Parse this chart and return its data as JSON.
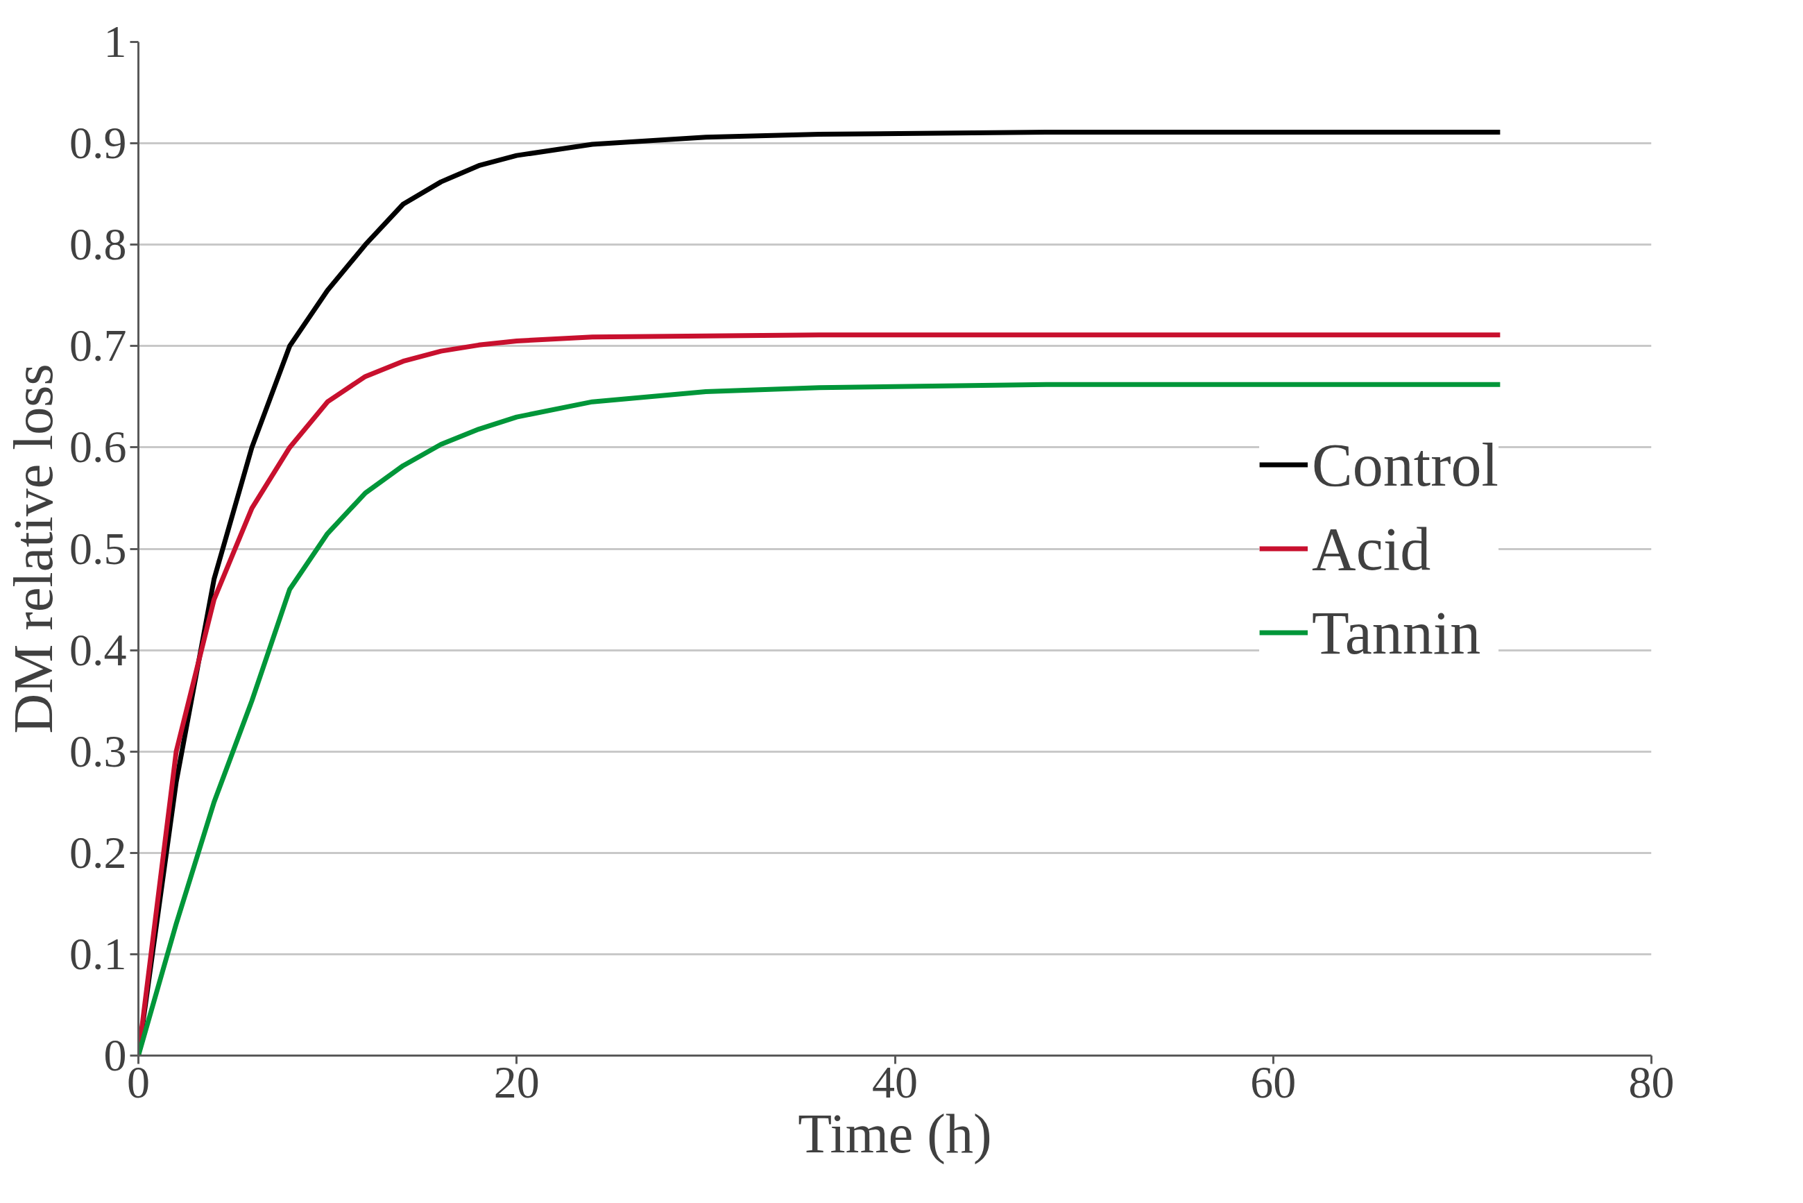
{
  "chart_data": {
    "type": "line",
    "xlabel": "Time (h)",
    "ylabel": "DM relative loss",
    "xlim": [
      0,
      80
    ],
    "xticks": [
      0,
      20,
      40,
      60,
      80
    ],
    "ylim": [
      0,
      1
    ],
    "yticks": [
      0,
      0.1,
      0.2,
      0.3,
      0.4,
      0.5,
      0.6,
      0.7,
      0.8,
      0.9,
      1
    ],
    "grid": "y",
    "legend": "right",
    "marker": "none",
    "line_style": "solid",
    "x": [
      0,
      2,
      4,
      6,
      8,
      10,
      12,
      14,
      16,
      18,
      20,
      24,
      30,
      36,
      48,
      72
    ],
    "series": [
      {
        "name": "Control",
        "color": "#000000",
        "values": [
          0,
          0.27,
          0.47,
          0.6,
          0.7,
          0.755,
          0.8,
          0.84,
          0.862,
          0.878,
          0.888,
          0.899,
          0.906,
          0.909,
          0.911,
          0.911
        ]
      },
      {
        "name": "Acid",
        "color": "#c8102e",
        "values": [
          0,
          0.3,
          0.45,
          0.54,
          0.6,
          0.645,
          0.67,
          0.685,
          0.695,
          0.701,
          0.705,
          0.709,
          0.71,
          0.711,
          0.711,
          0.711
        ]
      },
      {
        "name": "Tannin",
        "color": "#009639",
        "values": [
          0,
          0.13,
          0.25,
          0.35,
          0.46,
          0.515,
          0.555,
          0.582,
          0.603,
          0.618,
          0.63,
          0.645,
          0.655,
          0.659,
          0.662,
          0.662
        ]
      }
    ]
  }
}
